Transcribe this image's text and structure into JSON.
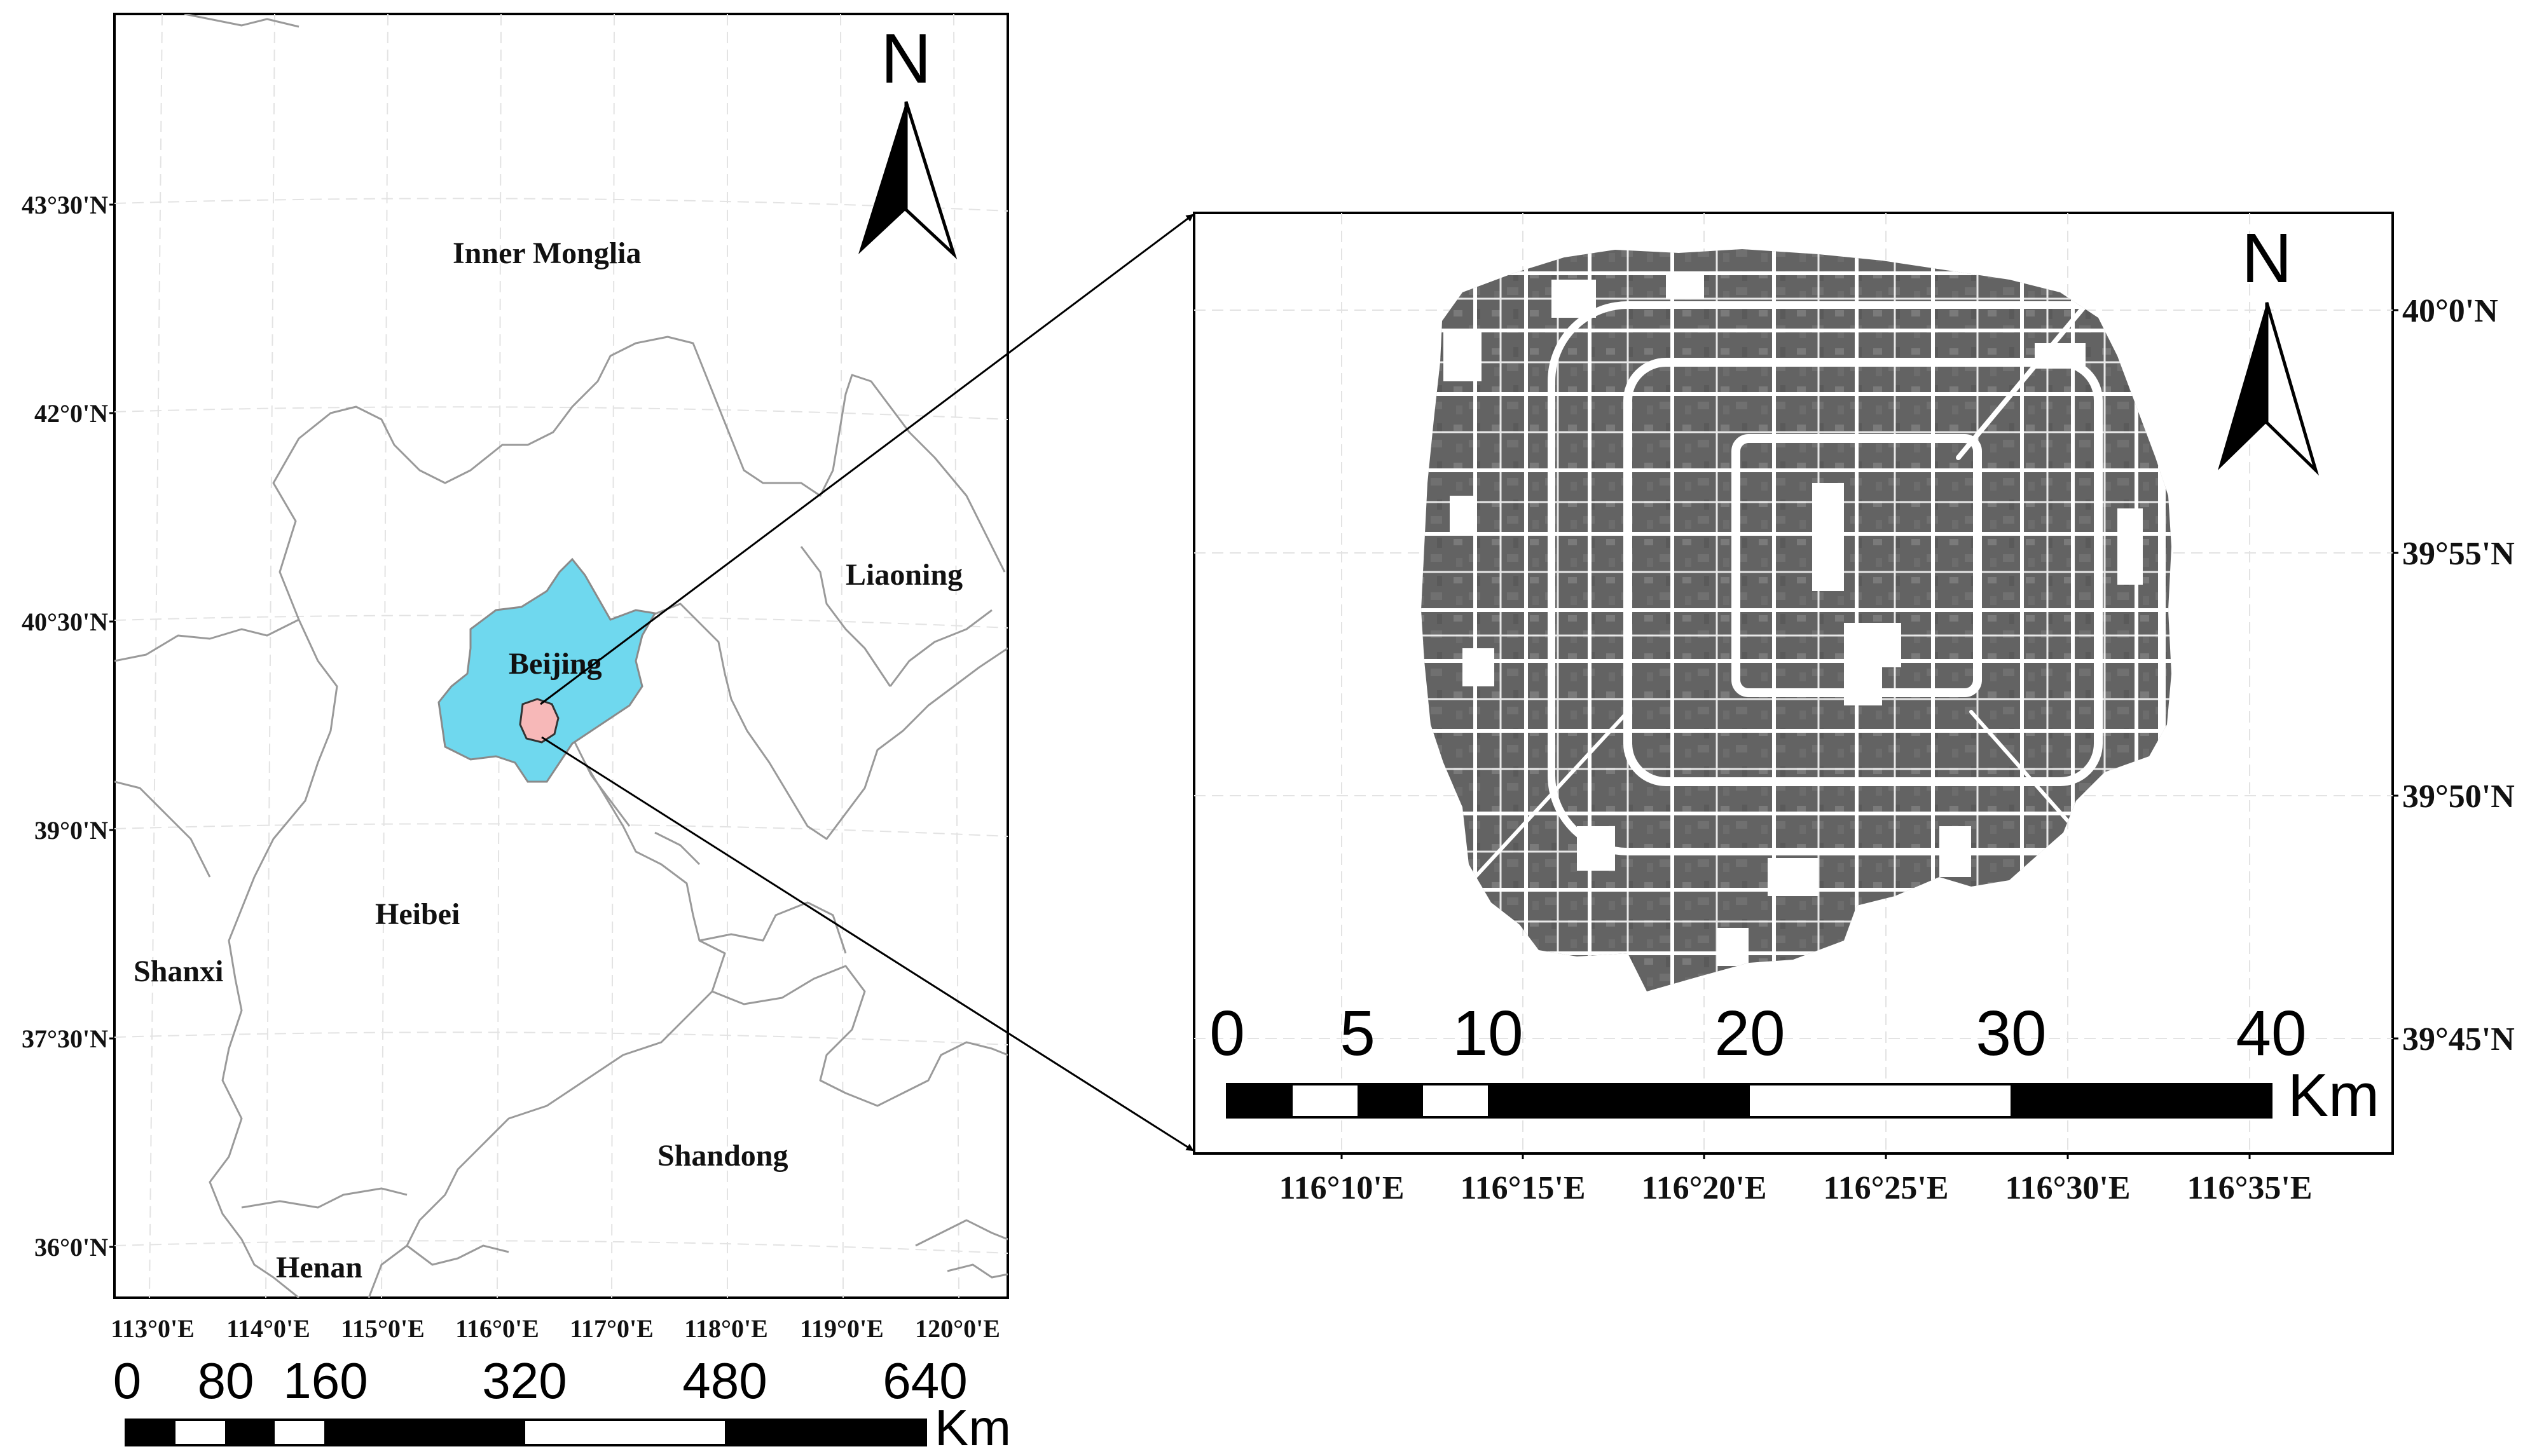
{
  "overview_map": {
    "region_labels": {
      "inner_mongolia": "Inner Monglia",
      "liaoning": "Liaoning",
      "beijing": "Beijing",
      "hebei": "Heibei",
      "shanxi": "Shanxi",
      "shandong": "Shandong",
      "henan": "Henan"
    },
    "lat_ticks": [
      "43°30'N",
      "42°0'N",
      "40°30'N",
      "39°0'N",
      "37°30'N",
      "36°0'N"
    ],
    "lon_ticks": [
      "113°0'E",
      "114°0'E",
      "115°0'E",
      "116°0'E",
      "117°0'E",
      "118°0'E",
      "119°0'E",
      "120°0'E"
    ],
    "north_label": "N",
    "scale": {
      "labels": [
        "0",
        "80",
        "160",
        "320",
        "480",
        "640"
      ],
      "unit": "Km"
    },
    "colors": {
      "beijing_fill": "#6fd8ee",
      "study_area_fill": "#f7b8b8",
      "boundary": "#9a9a9a"
    }
  },
  "detail_map": {
    "lat_ticks": [
      "40°0'N",
      "39°55'N",
      "39°50'N",
      "39°45'N"
    ],
    "lon_ticks": [
      "116°10'E",
      "116°15'E",
      "116°20'E",
      "116°25'E",
      "116°30'E",
      "116°35'E"
    ],
    "north_label": "N",
    "scale": {
      "labels": [
        "0",
        "5",
        "10",
        "20",
        "30",
        "40"
      ],
      "unit": "Km"
    },
    "colors": {
      "urban_fill": "#636363"
    }
  }
}
